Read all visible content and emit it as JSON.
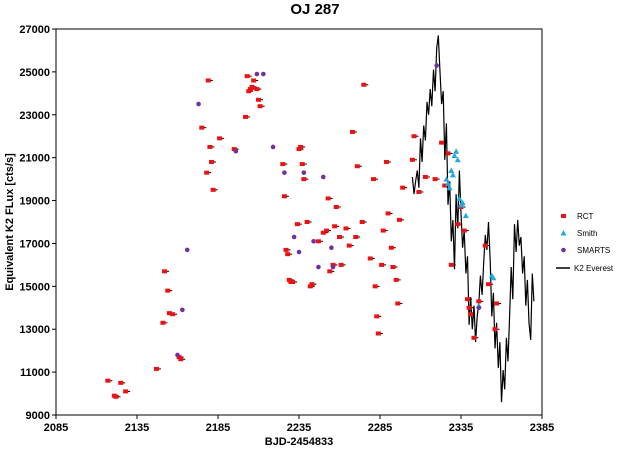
{
  "chart_data": {
    "type": "scatter",
    "title": "OJ 287",
    "xlabel": "BJD-2454833",
    "ylabel": "Equivalent K2 FLux [cts/s]",
    "xlim": [
      2085,
      2385
    ],
    "ylim": [
      9000,
      27000
    ],
    "x_ticks": [
      "2085",
      "2135",
      "2185",
      "2235",
      "2285",
      "2335",
      "2385"
    ],
    "y_ticks": [
      "9000",
      "11000",
      "13000",
      "15000",
      "17000",
      "19000",
      "21000",
      "23000",
      "25000",
      "27000"
    ],
    "grid": false,
    "legend_position": "right",
    "colors": {
      "RCT": "#ee1111",
      "Smith": "#22aadd",
      "SMARTS": "#7030a0",
      "K2 Everest": "#000000"
    },
    "series": [
      {
        "name": "RCT",
        "marker": "square",
        "points": [
          [
            2117,
            10600
          ],
          [
            2121,
            9900
          ],
          [
            2122,
            9850
          ],
          [
            2125,
            10500
          ],
          [
            2128,
            10100
          ],
          [
            2147,
            11150
          ],
          [
            2151,
            13300
          ],
          [
            2152,
            15700
          ],
          [
            2154,
            14800
          ],
          [
            2155,
            13750
          ],
          [
            2157,
            13700
          ],
          [
            2161,
            11700
          ],
          [
            2162,
            11600
          ],
          [
            2175,
            22400
          ],
          [
            2178,
            20300
          ],
          [
            2179,
            24600
          ],
          [
            2180,
            21500
          ],
          [
            2181,
            20800
          ],
          [
            2182,
            19500
          ],
          [
            2186,
            21900
          ],
          [
            2195,
            21400
          ],
          [
            2202,
            22900
          ],
          [
            2203,
            24800
          ],
          [
            2204,
            24100
          ],
          [
            2205,
            24200
          ],
          [
            2206,
            24300
          ],
          [
            2207,
            24600
          ],
          [
            2209,
            24200
          ],
          [
            2210,
            23700
          ],
          [
            2211,
            23400
          ],
          [
            2225,
            20700
          ],
          [
            2226,
            19200
          ],
          [
            2227,
            16700
          ],
          [
            2228,
            16500
          ],
          [
            2229,
            15300
          ],
          [
            2230,
            15200
          ],
          [
            2231,
            15200
          ],
          [
            2234,
            17900
          ],
          [
            2235,
            21400
          ],
          [
            2236,
            21500
          ],
          [
            2237,
            20700
          ],
          [
            2238,
            20000
          ],
          [
            2240,
            18000
          ],
          [
            2242,
            15000
          ],
          [
            2243,
            15100
          ],
          [
            2247,
            17100
          ],
          [
            2250,
            17500
          ],
          [
            2252,
            17600
          ],
          [
            2253,
            19100
          ],
          [
            2254,
            15700
          ],
          [
            2256,
            16000
          ],
          [
            2257,
            17800
          ],
          [
            2258,
            18700
          ],
          [
            2260,
            17300
          ],
          [
            2261,
            16000
          ],
          [
            2264,
            17700
          ],
          [
            2266,
            16900
          ],
          [
            2268,
            22200
          ],
          [
            2270,
            17300
          ],
          [
            2271,
            20600
          ],
          [
            2274,
            18000
          ],
          [
            2275,
            24400
          ],
          [
            2279,
            16300
          ],
          [
            2281,
            20000
          ],
          [
            2282,
            15000
          ],
          [
            2283,
            13600
          ],
          [
            2284,
            12800
          ],
          [
            2286,
            16000
          ],
          [
            2287,
            17600
          ],
          [
            2289,
            20800
          ],
          [
            2290,
            18400
          ],
          [
            2292,
            16800
          ],
          [
            2293,
            15900
          ],
          [
            2295,
            15300
          ],
          [
            2296,
            14200
          ],
          [
            2297,
            18100
          ],
          [
            2299,
            19600
          ],
          [
            2305,
            20900
          ],
          [
            2306,
            22000
          ],
          [
            2309,
            19400
          ],
          [
            2313,
            20100
          ],
          [
            2319,
            20000
          ],
          [
            2323,
            21700
          ],
          [
            2325,
            19700
          ],
          [
            2327,
            21200
          ],
          [
            2329,
            16000
          ],
          [
            2333,
            17900
          ],
          [
            2335,
            18700
          ],
          [
            2337,
            17600
          ],
          [
            2339,
            14400
          ],
          [
            2340,
            14000
          ],
          [
            2341,
            13700
          ],
          [
            2343,
            12600
          ],
          [
            2346,
            14300
          ],
          [
            2350,
            16900
          ],
          [
            2352,
            15100
          ],
          [
            2356,
            13000
          ],
          [
            2357,
            14200
          ]
        ]
      },
      {
        "name": "Smith",
        "marker": "triangle",
        "points": [
          [
            2326,
            20000
          ],
          [
            2327,
            19800
          ],
          [
            2328,
            19600
          ],
          [
            2329,
            20400
          ],
          [
            2330,
            20200
          ],
          [
            2331,
            21100
          ],
          [
            2332,
            21300
          ],
          [
            2333,
            20900
          ],
          [
            2334,
            19100
          ],
          [
            2335,
            18800
          ],
          [
            2336,
            18900
          ],
          [
            2338,
            18300
          ],
          [
            2354,
            15500
          ],
          [
            2355,
            15400
          ],
          [
            2346,
            14100
          ]
        ]
      },
      {
        "name": "SMARTS",
        "marker": "circle",
        "points": [
          [
            2166,
            16700
          ],
          [
            2163,
            13900
          ],
          [
            2160,
            11800
          ],
          [
            2173,
            23500
          ],
          [
            2196,
            21300
          ],
          [
            2209,
            24900
          ],
          [
            2213,
            24900
          ],
          [
            2219,
            21500
          ],
          [
            2226,
            20300
          ],
          [
            2238,
            20300
          ],
          [
            2232,
            17300
          ],
          [
            2244,
            17100
          ],
          [
            2250,
            20100
          ],
          [
            2255,
            16800
          ],
          [
            2235,
            16600
          ],
          [
            2247,
            15900
          ],
          [
            2256,
            15900
          ],
          [
            2320,
            25300
          ],
          [
            2346,
            14000
          ]
        ]
      },
      {
        "name": "K2 Everest",
        "marker": "line",
        "points": [
          [
            2305,
            20100
          ],
          [
            2306,
            19300
          ],
          [
            2307,
            19900
          ],
          [
            2308,
            20400
          ],
          [
            2309,
            19600
          ],
          [
            2310,
            21900
          ],
          [
            2311,
            20800
          ],
          [
            2312,
            22500
          ],
          [
            2313,
            21800
          ],
          [
            2314,
            23600
          ],
          [
            2315,
            23000
          ],
          [
            2316,
            24200
          ],
          [
            2317,
            23400
          ],
          [
            2318,
            25100
          ],
          [
            2319,
            24100
          ],
          [
            2320,
            26100
          ],
          [
            2321,
            26700
          ],
          [
            2322,
            25100
          ],
          [
            2323,
            23500
          ],
          [
            2324,
            24100
          ],
          [
            2325,
            20900
          ],
          [
            2326,
            22600
          ],
          [
            2327,
            18800
          ],
          [
            2328,
            19900
          ],
          [
            2329,
            17100
          ],
          [
            2330,
            18100
          ],
          [
            2331,
            15800
          ],
          [
            2332,
            19300
          ],
          [
            2333,
            17700
          ],
          [
            2334,
            20400
          ],
          [
            2335,
            18400
          ],
          [
            2336,
            16800
          ],
          [
            2337,
            17600
          ],
          [
            2338,
            15600
          ],
          [
            2339,
            16400
          ],
          [
            2340,
            13200
          ],
          [
            2341,
            14500
          ],
          [
            2342,
            13000
          ],
          [
            2343,
            14100
          ],
          [
            2344,
            12400
          ],
          [
            2345,
            13600
          ],
          [
            2346,
            14200
          ],
          [
            2347,
            15500
          ],
          [
            2348,
            14600
          ],
          [
            2349,
            16100
          ],
          [
            2350,
            17400
          ],
          [
            2351,
            16700
          ],
          [
            2352,
            18000
          ],
          [
            2353,
            16200
          ],
          [
            2354,
            13600
          ],
          [
            2355,
            14700
          ],
          [
            2356,
            12100
          ],
          [
            2357,
            13300
          ],
          [
            2358,
            11200
          ],
          [
            2359,
            12400
          ],
          [
            2360,
            9600
          ],
          [
            2361,
            11100
          ],
          [
            2362,
            10200
          ],
          [
            2363,
            12600
          ],
          [
            2364,
            11500
          ],
          [
            2365,
            13600
          ],
          [
            2366,
            15900
          ],
          [
            2367,
            14400
          ],
          [
            2368,
            17900
          ],
          [
            2369,
            16600
          ],
          [
            2370,
            18100
          ],
          [
            2371,
            16900
          ],
          [
            2372,
            17300
          ],
          [
            2373,
            15600
          ],
          [
            2374,
            16400
          ],
          [
            2375,
            14100
          ],
          [
            2376,
            15300
          ],
          [
            2377,
            13300
          ],
          [
            2378,
            12500
          ],
          [
            2379,
            15600
          ],
          [
            2380,
            14300
          ]
        ]
      }
    ]
  }
}
